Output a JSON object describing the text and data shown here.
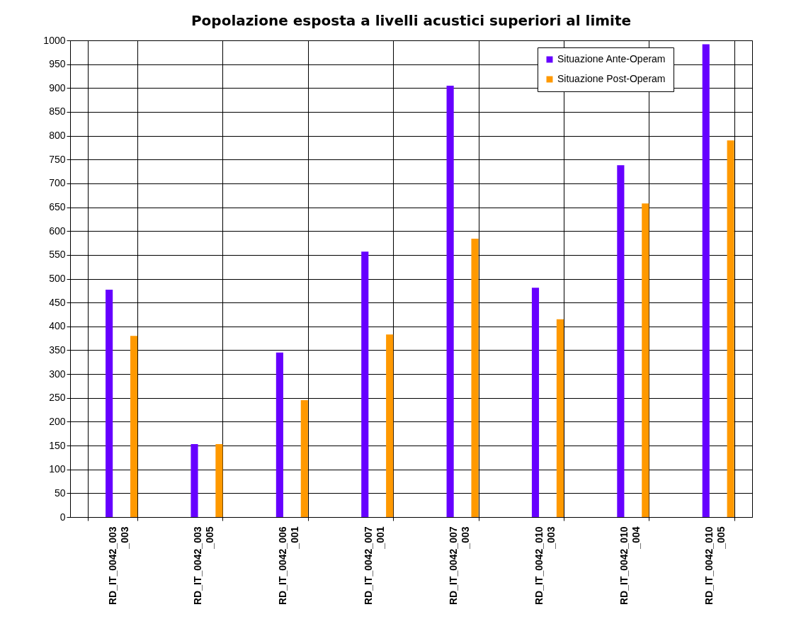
{
  "chart_data": {
    "type": "bar",
    "title": "Popolazione esposta a livelli acustici superiori al limite",
    "categories": [
      "RD_IT_0042_003_003",
      "RD_IT_0042_003_005",
      "RD_IT_0042_006_001",
      "RD_IT_0042_007_001",
      "RD_IT_0042_007_003",
      "RD_IT_0042_010_003",
      "RD_IT_0042_010_004",
      "RD_IT_0042_010_005"
    ],
    "series": [
      {
        "name": "Situazione Ante-Operam",
        "color": "#6600ff",
        "values": [
          477,
          153,
          345,
          557,
          905,
          481,
          738,
          992
        ]
      },
      {
        "name": "Situazione Post-Operam",
        "color": "#ff9900",
        "values": [
          380,
          153,
          245,
          383,
          584,
          415,
          658,
          790
        ]
      }
    ],
    "ylim": [
      0,
      1000
    ],
    "yticks": [
      0,
      50,
      100,
      150,
      200,
      250,
      300,
      350,
      400,
      450,
      500,
      550,
      600,
      650,
      700,
      750,
      800,
      850,
      900,
      950,
      1000
    ],
    "grid": "y",
    "legend": "top right"
  }
}
